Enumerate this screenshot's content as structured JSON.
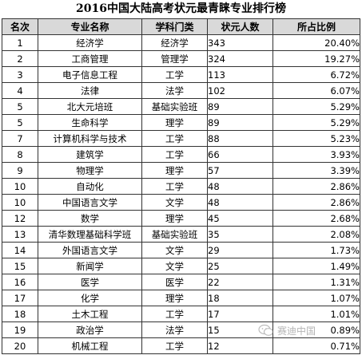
{
  "title": "2016中国大陆高考状元最青睐专业排行榜",
  "headers": {
    "rank": "名次",
    "major": "专业名称",
    "category": "学科门类",
    "count": "状元人数",
    "pct": "所占比例"
  },
  "rows": [
    {
      "rank": "1",
      "major": "经济学",
      "category": "经济学",
      "count": "343",
      "pct": "20.40%"
    },
    {
      "rank": "2",
      "major": "工商管理",
      "category": "管理学",
      "count": "324",
      "pct": "19.27%"
    },
    {
      "rank": "3",
      "major": "电子信息工程",
      "category": "工学",
      "count": "113",
      "pct": "6.72%"
    },
    {
      "rank": "4",
      "major": "法律",
      "category": "法学",
      "count": "102",
      "pct": "6.07%"
    },
    {
      "rank": "5",
      "major": "北大元培班",
      "category": "基础实验班",
      "count": "89",
      "pct": "5.29%"
    },
    {
      "rank": "5",
      "major": "生命科学",
      "category": "理学",
      "count": "89",
      "pct": "5.29%"
    },
    {
      "rank": "7",
      "major": "计算机科学与技术",
      "category": "工学",
      "count": "88",
      "pct": "5.23%"
    },
    {
      "rank": "8",
      "major": "建筑学",
      "category": "工学",
      "count": "66",
      "pct": "3.93%"
    },
    {
      "rank": "9",
      "major": "物理学",
      "category": "理学",
      "count": "57",
      "pct": "3.39%"
    },
    {
      "rank": "10",
      "major": "自动化",
      "category": "工学",
      "count": "48",
      "pct": "2.86%"
    },
    {
      "rank": "10",
      "major": "中国语言文学",
      "category": "文学",
      "count": "48",
      "pct": "2.86%"
    },
    {
      "rank": "12",
      "major": "数学",
      "category": "理学",
      "count": "45",
      "pct": "2.68%"
    },
    {
      "rank": "13",
      "major": "清华数理基础科学班",
      "category": "基础实验班",
      "count": "35",
      "pct": "2.08%"
    },
    {
      "rank": "14",
      "major": "外国语言文学",
      "category": "文学",
      "count": "29",
      "pct": "1.73%"
    },
    {
      "rank": "15",
      "major": "新闻学",
      "category": "文学",
      "count": "25",
      "pct": "1.49%"
    },
    {
      "rank": "16",
      "major": "医学",
      "category": "医学",
      "count": "22",
      "pct": "1.31%"
    },
    {
      "rank": "17",
      "major": "化学",
      "category": "理学",
      "count": "18",
      "pct": "1.07%"
    },
    {
      "rank": "18",
      "major": "土木工程",
      "category": "工学",
      "count": "17",
      "pct": "1.01%"
    },
    {
      "rank": "19",
      "major": "政治学",
      "category": "法学",
      "count": "15",
      "pct": "0.89%"
    },
    {
      "rank": "20",
      "major": "机械工程",
      "category": "工学",
      "count": "12",
      "pct": "0.71%"
    }
  ],
  "watermark": {
    "icon": "wechat-icon",
    "text": "赛迪中国"
  },
  "colors": {
    "header_bg": "#d9d9d9",
    "border": "#333333"
  }
}
